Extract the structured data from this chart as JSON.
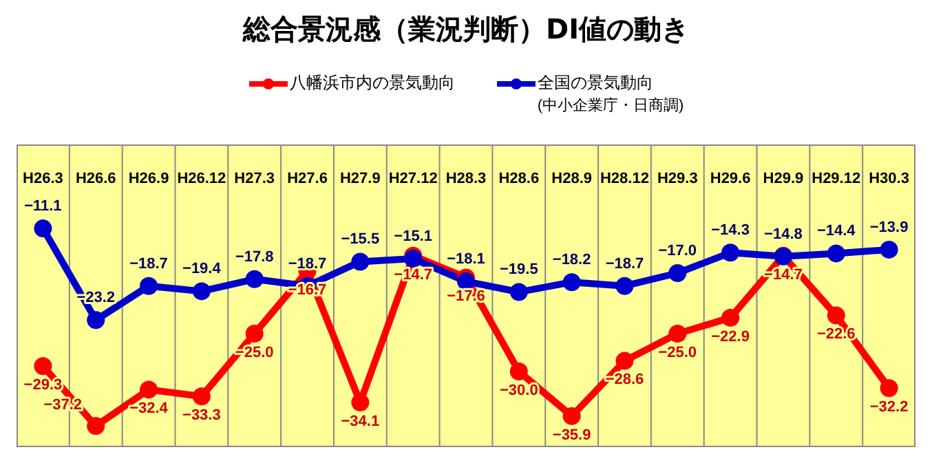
{
  "chart_data": {
    "type": "line",
    "title": "総合景況感（業況判断）DI値の動き",
    "categories": [
      "H26.3",
      "H26.6",
      "H26.9",
      "H26.12",
      "H27.3",
      "H27.6",
      "H27.9",
      "H27.12",
      "H28.3",
      "H28.6",
      "H28.9",
      "H28.12",
      "H29.3",
      "H29.6",
      "H29.9",
      "H29.12",
      "H30.3"
    ],
    "series": [
      {
        "name": "八幡浜市内の景気動向",
        "color": "#ff0000",
        "values": [
          -29.3,
          -37.2,
          -32.4,
          -33.3,
          -25.0,
          -16.7,
          -34.1,
          -14.7,
          -17.6,
          -30.0,
          -35.9,
          -28.6,
          -25.0,
          -22.9,
          -14.7,
          -22.6,
          -32.2
        ],
        "value_labels": [
          "−29.3",
          "−37.2",
          "−32.4",
          "−33.3",
          "−25.0",
          "−16.7",
          "−34.1",
          "−14.7",
          "−17.6",
          "−30.0",
          "−35.9",
          "−28.6",
          "−25.0",
          "−22.9",
          "−14.7",
          "−22.6",
          "−32.2"
        ]
      },
      {
        "name": "全国の景気動向",
        "color": "#0000cc",
        "values": [
          -11.1,
          -23.2,
          -18.7,
          -19.4,
          -17.8,
          -18.7,
          -15.5,
          -15.1,
          -18.1,
          -19.5,
          -18.2,
          -18.7,
          -17.0,
          -14.3,
          -14.8,
          -14.4,
          -13.9
        ],
        "value_labels": [
          "−11.1",
          "−23.2",
          "−18.7",
          "−19.4",
          "−17.8",
          "−18.7",
          "−15.5",
          "−15.1",
          "−18.1",
          "−19.5",
          "−18.2",
          "−18.7",
          "−17.0",
          "−14.3",
          "−14.8",
          "−14.4",
          "−13.9"
        ]
      }
    ],
    "annotations": [
      "(中小企業庁・日商調)"
    ],
    "ylim": [
      -40,
      0
    ],
    "tick_labels": "x",
    "grid": "x",
    "legend": "top",
    "marker": "circle",
    "line_style": "solid"
  }
}
